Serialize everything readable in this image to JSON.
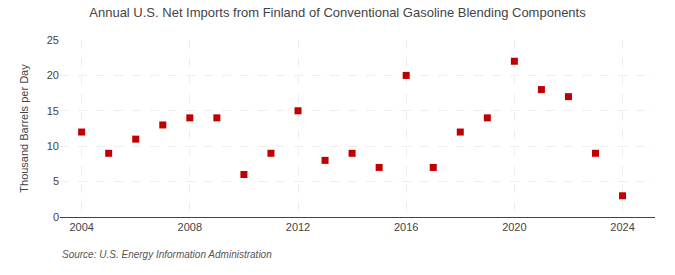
{
  "chart_data": {
    "type": "scatter",
    "title": "Annual U.S. Net Imports from Finland of Conventional Gasoline Blending Components",
    "ylabel": "Thousand Barrels per Day",
    "source": "Source: U.S. Energy Information Administration",
    "x": [
      2004,
      2005,
      2006,
      2007,
      2008,
      2009,
      2010,
      2011,
      2012,
      2013,
      2014,
      2015,
      2016,
      2017,
      2018,
      2019,
      2020,
      2021,
      2022,
      2023,
      2024
    ],
    "values": [
      12,
      9,
      11,
      13,
      14,
      14,
      6,
      9,
      15,
      8,
      9,
      7,
      20,
      7,
      12,
      14,
      22,
      18,
      17,
      9,
      3
    ],
    "color": "#c00000",
    "marker": "square",
    "xlim": [
      2003.2,
      2025.2
    ],
    "xticks": [
      2004,
      2008,
      2012,
      2016,
      2020,
      2024
    ],
    "ylim": [
      0,
      25
    ],
    "yticks": [
      0,
      5,
      10,
      15,
      20,
      25
    ],
    "grid": true
  }
}
